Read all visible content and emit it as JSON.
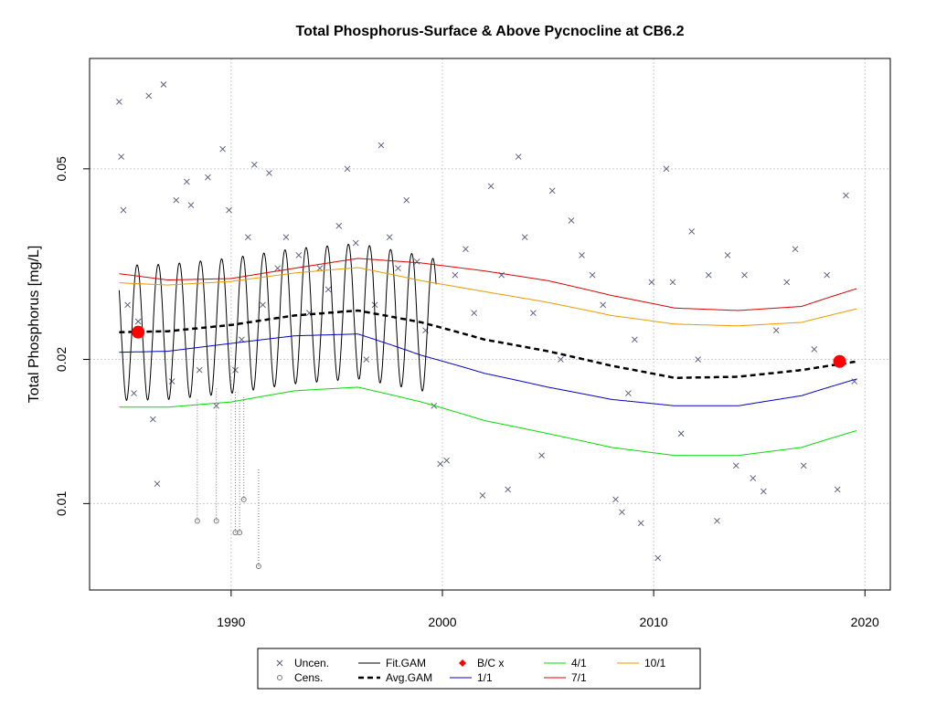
{
  "chart_data": {
    "type": "scatter",
    "title": "Total Phosphorus-Surface & Above Pycnocline at CB6.2",
    "xlabel": "",
    "ylabel": "Total Phosphorus [mg/L]",
    "x_ticks": [
      "1990",
      "2000",
      "2010",
      "2020"
    ],
    "y_ticks": [
      "0.01",
      "0.02",
      "0.05"
    ],
    "y_scale": "log",
    "xlim": [
      1983.3,
      2021.2
    ],
    "ylim": [
      0.0066,
      0.085
    ],
    "grid": true,
    "legend_position": "bottom",
    "colors": {
      "uncensored": "#555577",
      "censored": "#777777",
      "fit_gam": "#000000",
      "avg_gam": "#000000",
      "bc": "#ff0000",
      "q_1_1": "#0000cc",
      "q_4_1": "#00dd00",
      "q_7_1": "#dd0000",
      "q_10_1": "#ee9900"
    },
    "legend": [
      {
        "key": "uncen",
        "label": "Uncen.",
        "symbol": "x-mark"
      },
      {
        "key": "cens",
        "label": "Cens.",
        "symbol": "open-circle"
      },
      {
        "key": "fit",
        "label": "Fit.GAM",
        "symbol": "line"
      },
      {
        "key": "avg",
        "label": "Avg.GAM",
        "symbol": "dashed-line"
      },
      {
        "key": "bc",
        "label": "B/C x",
        "symbol": "filled-diamond"
      },
      {
        "key": "q11",
        "label": "1/1",
        "symbol": "line"
      },
      {
        "key": "q41",
        "label": "4/1",
        "symbol": "line"
      },
      {
        "key": "q71",
        "label": "7/1",
        "symbol": "line"
      },
      {
        "key": "q101",
        "label": "10/1",
        "symbol": "line"
      }
    ],
    "series": [
      {
        "name": "Avg.GAM",
        "x": [
          1984.7,
          1987,
          1990,
          1993,
          1996,
          1999,
          2002,
          2005,
          2008,
          2011,
          2014,
          2017,
          2019.6
        ],
        "y": [
          0.0228,
          0.0229,
          0.0236,
          0.0247,
          0.0253,
          0.0239,
          0.022,
          0.0208,
          0.0194,
          0.0183,
          0.0184,
          0.019,
          0.0198
        ]
      },
      {
        "name": "1/1",
        "x": [
          1984.7,
          1987,
          1990,
          1993,
          1996,
          1999,
          2002,
          2005,
          2008,
          2011,
          2014,
          2017,
          2019.6
        ],
        "y": [
          0.0207,
          0.0208,
          0.0216,
          0.0224,
          0.0226,
          0.0204,
          0.0187,
          0.0175,
          0.0165,
          0.016,
          0.016,
          0.0168,
          0.0182
        ]
      },
      {
        "name": "4/1",
        "x": [
          1984.7,
          1987,
          1990,
          1993,
          1996,
          1999,
          2002,
          2005,
          2008,
          2011,
          2014,
          2017,
          2019.6
        ],
        "y": [
          0.0159,
          0.0159,
          0.0163,
          0.0172,
          0.0175,
          0.0163,
          0.0149,
          0.014,
          0.0131,
          0.0126,
          0.0126,
          0.0131,
          0.0142
        ]
      },
      {
        "name": "7/1",
        "x": [
          1984.7,
          1987,
          1990,
          1993,
          1996,
          1999,
          2002,
          2005,
          2008,
          2011,
          2014,
          2017,
          2019.6
        ],
        "y": [
          0.0302,
          0.0293,
          0.0295,
          0.031,
          0.0325,
          0.0318,
          0.0306,
          0.0292,
          0.0272,
          0.0256,
          0.0253,
          0.0258,
          0.0281
        ]
      },
      {
        "name": "10/1",
        "x": [
          1984.7,
          1987,
          1990,
          1993,
          1996,
          1999,
          2002,
          2005,
          2008,
          2011,
          2014,
          2017,
          2019.6
        ],
        "y": [
          0.0289,
          0.0286,
          0.0291,
          0.0303,
          0.0311,
          0.0292,
          0.0277,
          0.0263,
          0.0247,
          0.0237,
          0.0235,
          0.0239,
          0.0255
        ]
      }
    ],
    "fit_gam": {
      "x_start": 1984.7,
      "x_end": 1999.7,
      "period": 1.0,
      "peak_phase": 0.55,
      "peak_scale": 1.38,
      "trough_scale": 0.72
    },
    "bc_points": [
      {
        "x": 1985.6,
        "y": 0.0228
      },
      {
        "x": 2018.8,
        "y": 0.0198
      }
    ],
    "uncensored_points": [
      [
        1984.7,
        0.069
      ],
      [
        1984.8,
        0.053
      ],
      [
        1984.9,
        0.041
      ],
      [
        1985.1,
        0.026
      ],
      [
        1985.4,
        0.017
      ],
      [
        1985.6,
        0.024
      ],
      [
        1986.1,
        0.071
      ],
      [
        1986.3,
        0.015
      ],
      [
        1986.5,
        0.011
      ],
      [
        1986.8,
        0.075
      ],
      [
        1987.2,
        0.018
      ],
      [
        1987.4,
        0.043
      ],
      [
        1987.9,
        0.047
      ],
      [
        1988.1,
        0.042
      ],
      [
        1988.5,
        0.019
      ],
      [
        1988.9,
        0.048
      ],
      [
        1989.3,
        0.016
      ],
      [
        1989.6,
        0.055
      ],
      [
        1989.9,
        0.041
      ],
      [
        1990.2,
        0.019
      ],
      [
        1990.5,
        0.022
      ],
      [
        1990.8,
        0.036
      ],
      [
        1991.1,
        0.051
      ],
      [
        1991.5,
        0.026
      ],
      [
        1991.8,
        0.049
      ],
      [
        1992.2,
        0.031
      ],
      [
        1992.6,
        0.036
      ],
      [
        1993.2,
        0.033
      ],
      [
        1993.7,
        0.025
      ],
      [
        1994.2,
        0.031
      ],
      [
        1994.6,
        0.028
      ],
      [
        1995.1,
        0.038
      ],
      [
        1995.5,
        0.05
      ],
      [
        1995.9,
        0.035
      ],
      [
        1996.4,
        0.02
      ],
      [
        1996.8,
        0.026
      ],
      [
        1997.1,
        0.056
      ],
      [
        1997.5,
        0.036
      ],
      [
        1997.9,
        0.031
      ],
      [
        1998.3,
        0.043
      ],
      [
        1998.8,
        0.032
      ],
      [
        1999.2,
        0.023
      ],
      [
        1999.6,
        0.016
      ],
      [
        1999.9,
        0.0121
      ],
      [
        2000.2,
        0.0123
      ],
      [
        2000.6,
        0.03
      ],
      [
        2001.1,
        0.034
      ],
      [
        2001.5,
        0.025
      ],
      [
        2001.9,
        0.0104
      ],
      [
        2002.3,
        0.046
      ],
      [
        2002.8,
        0.03
      ],
      [
        2003.1,
        0.0107
      ],
      [
        2003.6,
        0.053
      ],
      [
        2003.9,
        0.036
      ],
      [
        2004.3,
        0.025
      ],
      [
        2004.7,
        0.0126
      ],
      [
        2005.2,
        0.045
      ],
      [
        2005.6,
        0.02
      ],
      [
        2006.1,
        0.039
      ],
      [
        2006.6,
        0.033
      ],
      [
        2007.1,
        0.03
      ],
      [
        2007.6,
        0.026
      ],
      [
        2008.2,
        0.0102
      ],
      [
        2008.5,
        0.0096
      ],
      [
        2008.8,
        0.017
      ],
      [
        2009.1,
        0.022
      ],
      [
        2009.4,
        0.0091
      ],
      [
        2009.9,
        0.029
      ],
      [
        2010.2,
        0.0077
      ],
      [
        2010.6,
        0.05
      ],
      [
        2010.9,
        0.029
      ],
      [
        2011.3,
        0.014
      ],
      [
        2011.8,
        0.037
      ],
      [
        2012.1,
        0.02
      ],
      [
        2012.6,
        0.03
      ],
      [
        2013.0,
        0.0092
      ],
      [
        2013.5,
        0.033
      ],
      [
        2013.9,
        0.012
      ],
      [
        2014.3,
        0.03
      ],
      [
        2014.7,
        0.0113
      ],
      [
        2015.2,
        0.0106
      ],
      [
        2015.8,
        0.023
      ],
      [
        2016.3,
        0.029
      ],
      [
        2016.7,
        0.034
      ],
      [
        2017.1,
        0.012
      ],
      [
        2017.6,
        0.021
      ],
      [
        2018.2,
        0.03
      ],
      [
        2018.7,
        0.0107
      ],
      [
        2019.1,
        0.044
      ],
      [
        2019.5,
        0.018
      ]
    ],
    "censored_points": [
      [
        1988.4,
        0.0092,
        0.0165
      ],
      [
        1989.3,
        0.0092,
        0.0175
      ],
      [
        1990.2,
        0.0087,
        0.0172
      ],
      [
        1990.4,
        0.0087,
        0.0165
      ],
      [
        1990.6,
        0.0102,
        0.0168
      ],
      [
        1991.3,
        0.0074,
        0.0118
      ]
    ]
  }
}
